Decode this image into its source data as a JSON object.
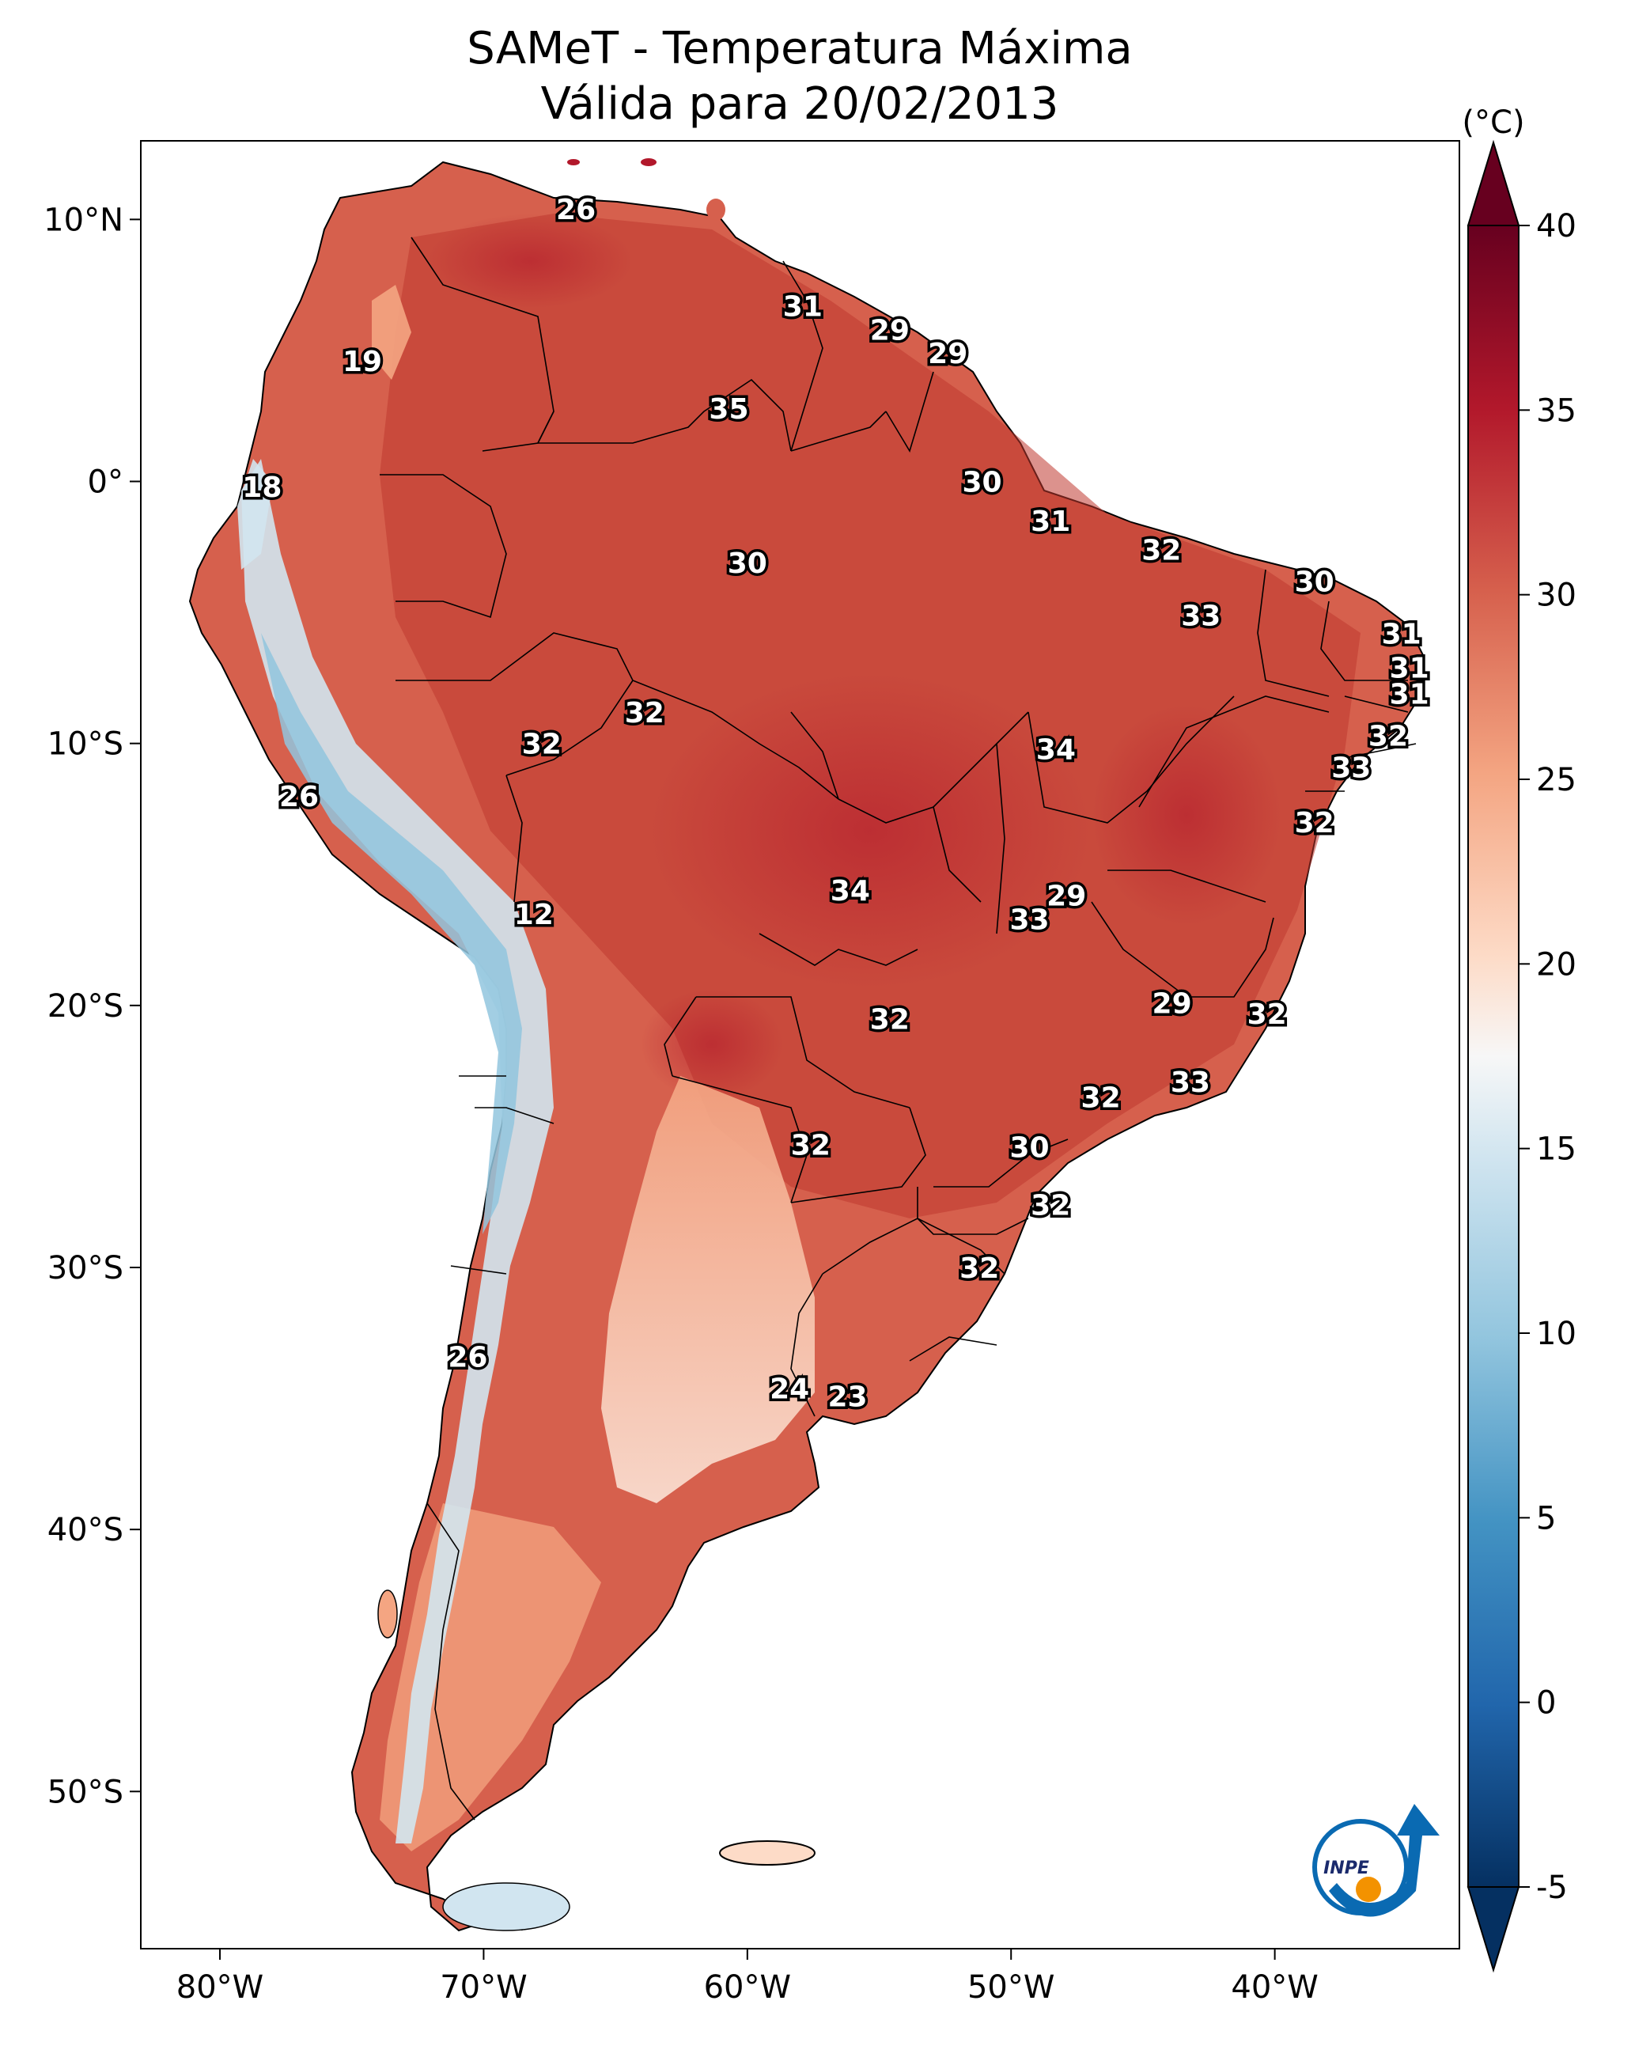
{
  "title": {
    "line1": "SAMeT - Temperatura Máxima",
    "line2": "Válida para 20/02/2013"
  },
  "axes": {
    "lon_range": [
      -83,
      -33
    ],
    "lat_range": [
      -56,
      13
    ],
    "x_ticks": [
      {
        "lon": -80,
        "label": "80°W"
      },
      {
        "lon": -70,
        "label": "70°W"
      },
      {
        "lon": -60,
        "label": "60°W"
      },
      {
        "lon": -50,
        "label": "50°W"
      },
      {
        "lon": -40,
        "label": "40°W"
      }
    ],
    "y_ticks": [
      {
        "lat": 10,
        "label": "10°N"
      },
      {
        "lat": 0,
        "label": "0°"
      },
      {
        "lat": -10,
        "label": "10°S"
      },
      {
        "lat": -20,
        "label": "20°S"
      },
      {
        "lat": -30,
        "label": "30°S"
      },
      {
        "lat": -40,
        "label": "40°S"
      },
      {
        "lat": -50,
        "label": "50°S"
      }
    ]
  },
  "colorbar": {
    "unit": "(°C)",
    "min": -5,
    "max": 40,
    "extend": "both",
    "cmap": "RdBu_r",
    "ticks": [
      {
        "value": 40,
        "label": "40"
      },
      {
        "value": 35,
        "label": "35"
      },
      {
        "value": 30,
        "label": "30"
      },
      {
        "value": 25,
        "label": "25"
      },
      {
        "value": 20,
        "label": "20"
      },
      {
        "value": 15,
        "label": "15"
      },
      {
        "value": 10,
        "label": "10"
      },
      {
        "value": 5,
        "label": "5"
      },
      {
        "value": 0,
        "label": "0"
      },
      {
        "value": -5,
        "label": "-5"
      }
    ],
    "colors": {
      "c40": "#67001f",
      "c35": "#b2182b",
      "c30": "#d6604d",
      "c25": "#f4a582",
      "c20": "#fddbc7",
      "c17": "#f7f7f7",
      "c15": "#d1e5f0",
      "c10": "#92c5de",
      "c5": "#4393c3",
      "c0": "#2166ac",
      "cm5": "#053061"
    }
  },
  "chart_data": {
    "type": "map",
    "variable": "Temperatura Máxima",
    "date": "20/02/2013",
    "units": "°C",
    "station_values": [
      {
        "lon": -66.5,
        "lat": 10.4,
        "value": 26,
        "label": "26"
      },
      {
        "lon": -74.6,
        "lat": 4.6,
        "value": 19,
        "label": "19"
      },
      {
        "lon": -57.9,
        "lat": 6.7,
        "value": 31,
        "label": "31"
      },
      {
        "lon": -54.6,
        "lat": 5.8,
        "value": 29,
        "label": "29"
      },
      {
        "lon": -52.4,
        "lat": 4.9,
        "value": 29,
        "label": "29"
      },
      {
        "lon": -60.7,
        "lat": 2.8,
        "value": 35,
        "label": "35"
      },
      {
        "lon": -78.4,
        "lat": -0.2,
        "value": 18,
        "label": "18"
      },
      {
        "lon": -51.1,
        "lat": 0.0,
        "value": 30,
        "label": "30"
      },
      {
        "lon": -48.5,
        "lat": -1.5,
        "value": 31,
        "label": "31"
      },
      {
        "lon": -44.3,
        "lat": -2.6,
        "value": 32,
        "label": "32"
      },
      {
        "lon": -38.5,
        "lat": -3.8,
        "value": 30,
        "label": "30"
      },
      {
        "lon": -60.0,
        "lat": -3.1,
        "value": 30,
        "label": "30"
      },
      {
        "lon": -42.8,
        "lat": -5.1,
        "value": 33,
        "label": "33"
      },
      {
        "lon": -35.2,
        "lat": -5.8,
        "value": 31,
        "label": "31"
      },
      {
        "lon": -34.9,
        "lat": -7.1,
        "value": 31,
        "label": "31"
      },
      {
        "lon": -34.9,
        "lat": -8.1,
        "value": 31,
        "label": "31"
      },
      {
        "lon": -63.9,
        "lat": -8.8,
        "value": 32,
        "label": "32"
      },
      {
        "lon": -67.8,
        "lat": -10.0,
        "value": 32,
        "label": "32"
      },
      {
        "lon": -48.3,
        "lat": -10.2,
        "value": 34,
        "label": "34"
      },
      {
        "lon": -35.7,
        "lat": -9.7,
        "value": 32,
        "label": "32"
      },
      {
        "lon": -37.1,
        "lat": -10.9,
        "value": 33,
        "label": "33"
      },
      {
        "lon": -77.0,
        "lat": -12.0,
        "value": 26,
        "label": "26"
      },
      {
        "lon": -38.5,
        "lat": -13.0,
        "value": 32,
        "label": "32"
      },
      {
        "lon": -68.1,
        "lat": -16.5,
        "value": 12,
        "label": "12"
      },
      {
        "lon": -56.1,
        "lat": -15.6,
        "value": 34,
        "label": "34"
      },
      {
        "lon": -47.9,
        "lat": -15.8,
        "value": 29,
        "label": "29"
      },
      {
        "lon": -49.3,
        "lat": -16.7,
        "value": 33,
        "label": "33"
      },
      {
        "lon": -43.9,
        "lat": -19.9,
        "value": 29,
        "label": "29"
      },
      {
        "lon": -40.3,
        "lat": -20.3,
        "value": 32,
        "label": "32"
      },
      {
        "lon": -54.6,
        "lat": -20.5,
        "value": 32,
        "label": "32"
      },
      {
        "lon": -43.2,
        "lat": -22.9,
        "value": 33,
        "label": "33"
      },
      {
        "lon": -46.6,
        "lat": -23.5,
        "value": 32,
        "label": "32"
      },
      {
        "lon": -57.6,
        "lat": -25.3,
        "value": 32,
        "label": "32"
      },
      {
        "lon": -49.3,
        "lat": -25.4,
        "value": 30,
        "label": "30"
      },
      {
        "lon": -48.5,
        "lat": -27.6,
        "value": 32,
        "label": "32"
      },
      {
        "lon": -51.2,
        "lat": -30.0,
        "value": 32,
        "label": "32"
      },
      {
        "lon": -70.6,
        "lat": -33.4,
        "value": 26,
        "label": "26"
      },
      {
        "lon": -58.4,
        "lat": -34.6,
        "value": 24,
        "label": "24"
      },
      {
        "lon": -56.2,
        "lat": -34.9,
        "value": 23,
        "label": "23"
      }
    ]
  },
  "logo": {
    "name": "inpe-logo",
    "text": "INPE"
  }
}
